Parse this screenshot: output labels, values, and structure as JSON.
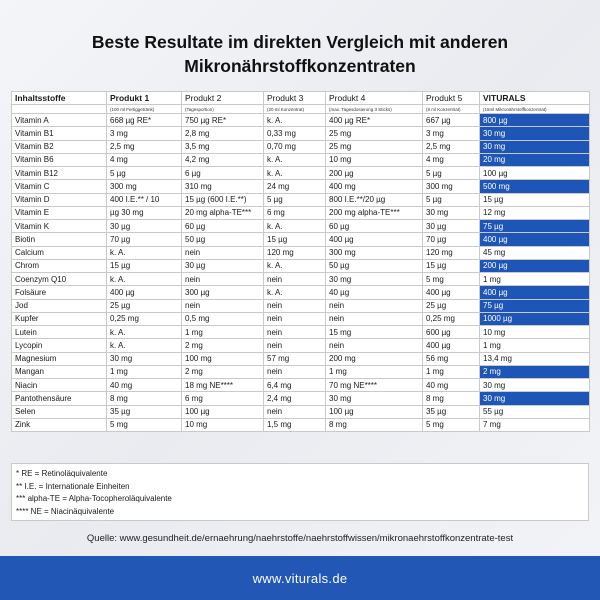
{
  "title": {
    "line1": "Beste Resultate im direkten Vergleich mit anderen",
    "line2": "Mikronährstoffkonzentraten"
  },
  "table": {
    "headers": [
      "Inhaltsstoffe",
      "Produkt 1",
      "Produkt 2",
      "Produkt 3",
      "Produkt 4",
      "Produkt 5",
      "VITURALS"
    ],
    "subheaders": [
      "",
      "(100 ml Fertiggetränk)",
      "(Tagesportion)",
      "(20 ml Konzentrat)",
      "(max. Tagesdosierung 3 Sticks)",
      "(8 ml Konzentrat)",
      "(15ml Mikronährstoffkonzentrat)"
    ],
    "rows": [
      {
        "cells": [
          "Vitamin A",
          "668 µg RE*",
          "750 µg RE*",
          "k. A.",
          "400 µg RE*",
          "667 µg",
          "800 µg"
        ],
        "hl": true
      },
      {
        "cells": [
          "Vitamin B1",
          "3 mg",
          "2,8 mg",
          "0,33 mg",
          "25 mg",
          "3 mg",
          "30 mg"
        ],
        "hl": true
      },
      {
        "cells": [
          "Vitamin B2",
          "2,5 mg",
          "3,5 mg",
          "0,70 mg",
          "25 mg",
          "2,5 mg",
          "30 mg"
        ],
        "hl": true
      },
      {
        "cells": [
          "Vitamin B6",
          "4 mg",
          "4,2 mg",
          "k. A.",
          "10 mg",
          "4 mg",
          "20 mg"
        ],
        "hl": true
      },
      {
        "cells": [
          "Vitamin B12",
          "5 µg",
          "6 µg",
          "k. A.",
          "200 µg",
          "5 µg",
          "100 µg"
        ],
        "hl": false
      },
      {
        "cells": [
          "Vitamin C",
          "300 mg",
          "310 mg",
          "24 mg",
          "400 mg",
          "300 mg",
          "500 mg"
        ],
        "hl": true
      },
      {
        "cells": [
          "Vitamin D",
          "400  I.E.**  /  10",
          "15 µg (600 I.E.**)",
          "5 µg",
          "800 I.E.**/20 µg",
          "5 µg",
          "15 µg"
        ],
        "hl": false
      },
      {
        "cells": [
          "Vitamin E",
          "µg 30 mg",
          "20 mg alpha-TE***",
          "6 mg",
          "200 mg alpha-TE***",
          "30 mg",
          "12 mg"
        ],
        "hl": false
      },
      {
        "cells": [
          "Vitamin K",
          "30 µg",
          "60 µg",
          "k. A.",
          "60 µg",
          "30 µg",
          "75 µg"
        ],
        "hl": true
      },
      {
        "cells": [
          "Biotin",
          "70 µg",
          "50 µg",
          "15 µg",
          "400 µg",
          "70 µg",
          "400 µg"
        ],
        "hl": true
      },
      {
        "cells": [
          "Calcium",
          "k. A.",
          "nein",
          "120 mg",
          "300 mg",
          "120 mg",
          "45 mg"
        ],
        "hl": false
      },
      {
        "cells": [
          "Chrom",
          "15 µg",
          "30 µg",
          "k. A.",
          "50 µg",
          "15 µg",
          "200 µg"
        ],
        "hl": true
      },
      {
        "cells": [
          "Coenzym Q10",
          "k. A.",
          "nein",
          "nein",
          "30 mg",
          "5 mg",
          "1 mg"
        ],
        "hl": false
      },
      {
        "cells": [
          "Folsäure",
          "400 µg",
          "300 µg",
          "k. A.",
          "40 µg",
          "400 µg",
          "400 µg"
        ],
        "hl": true
      },
      {
        "cells": [
          "Jod",
          "25 µg",
          "nein",
          "nein",
          "nein",
          "25 µg",
          "75 µg"
        ],
        "hl": true
      },
      {
        "cells": [
          "Kupfer",
          "0,25 mg",
          "0,5 mg",
          "nein",
          "nein",
          "0,25 mg",
          "1000 µg"
        ],
        "hl": true
      },
      {
        "cells": [
          "Lutein",
          "k. A.",
          "1 mg",
          "nein",
          "15 mg",
          "600 µg",
          "10 mg"
        ],
        "hl": false
      },
      {
        "cells": [
          "Lycopin",
          "k. A.",
          "2 mg",
          "nein",
          "nein",
          "400 µg",
          "1 mg"
        ],
        "hl": false
      },
      {
        "cells": [
          "Magnesium",
          "30 mg",
          "100 mg",
          "57 mg",
          "200 mg",
          "56 mg",
          "13,4 mg"
        ],
        "hl": false
      },
      {
        "cells": [
          "Mangan",
          "1 mg",
          "2 mg",
          "nein",
          "1 mg",
          "1 mg",
          "2 mg"
        ],
        "hl": true
      },
      {
        "cells": [
          "Niacin",
          "40 mg",
          "18 mg NE****",
          "6,4 mg",
          "70 mg NE****",
          "40 mg",
          "30 mg"
        ],
        "hl": false
      },
      {
        "cells": [
          "Pantothensäure",
          "8 mg",
          "6 mg",
          "2,4 mg",
          "30 mg",
          "8 mg",
          "30 mg"
        ],
        "hl": true
      },
      {
        "cells": [
          "Selen",
          "35 µg",
          "100 µg",
          "nein",
          "100 µg",
          "35 µg",
          "55 µg"
        ],
        "hl": false
      },
      {
        "cells": [
          "Zink",
          "5 mg",
          "10 mg",
          "1,5 mg",
          "8 mg",
          "5 mg",
          "7 mg"
        ],
        "hl": false
      }
    ]
  },
  "notes": [
    "* RE = Retinoläquivalente",
    "** I.E. = Internationale Einheiten",
    "*** alpha-TE = Alpha-Tocopheroläquivalente",
    "**** NE = Niacinäquivalente"
  ],
  "source": "Quelle: www.gesundheit.de/ernaehrung/naehrstoffe/naehrstoffwissen/mikronaehrstoffkonzentrate-test",
  "footer": {
    "url": "www.viturals.de"
  },
  "colors": {
    "highlight": "#1e56b8",
    "footer": "#2257b6"
  }
}
